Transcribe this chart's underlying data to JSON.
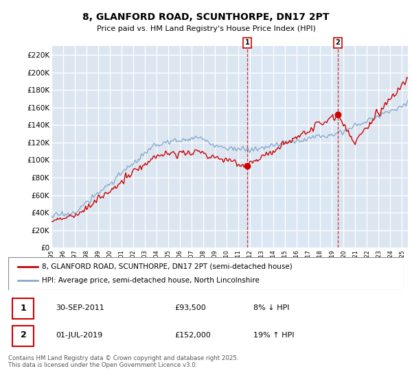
{
  "title": "8, GLANFORD ROAD, SCUNTHORPE, DN17 2PT",
  "subtitle": "Price paid vs. HM Land Registry's House Price Index (HPI)",
  "red_label": "8, GLANFORD ROAD, SCUNTHORPE, DN17 2PT (semi-detached house)",
  "blue_label": "HPI: Average price, semi-detached house, North Lincolnshire",
  "annotation1_date": "30-SEP-2011",
  "annotation1_price": "£93,500",
  "annotation1_hpi": "8% ↓ HPI",
  "annotation2_date": "01-JUL-2019",
  "annotation2_price": "£152,000",
  "annotation2_hpi": "19% ↑ HPI",
  "footer": "Contains HM Land Registry data © Crown copyright and database right 2025.\nThis data is licensed under the Open Government Licence v3.0.",
  "bg_color": "#dce6f1",
  "red_color": "#cc0000",
  "blue_color": "#88aacc",
  "shade_color": "#dde8f5",
  "ylim": [
    0,
    230000
  ],
  "yticks": [
    0,
    20000,
    40000,
    60000,
    80000,
    100000,
    120000,
    140000,
    160000,
    180000,
    200000,
    220000
  ],
  "ytick_labels": [
    "£0",
    "£20K",
    "£40K",
    "£60K",
    "£80K",
    "£100K",
    "£120K",
    "£140K",
    "£160K",
    "£180K",
    "£200K",
    "£220K"
  ],
  "xmin": 1995.0,
  "xmax": 2025.5,
  "marker1_x": 2011.75,
  "marker1_y": 93500,
  "marker2_x": 2019.5,
  "marker2_y": 152000,
  "seed": 17
}
